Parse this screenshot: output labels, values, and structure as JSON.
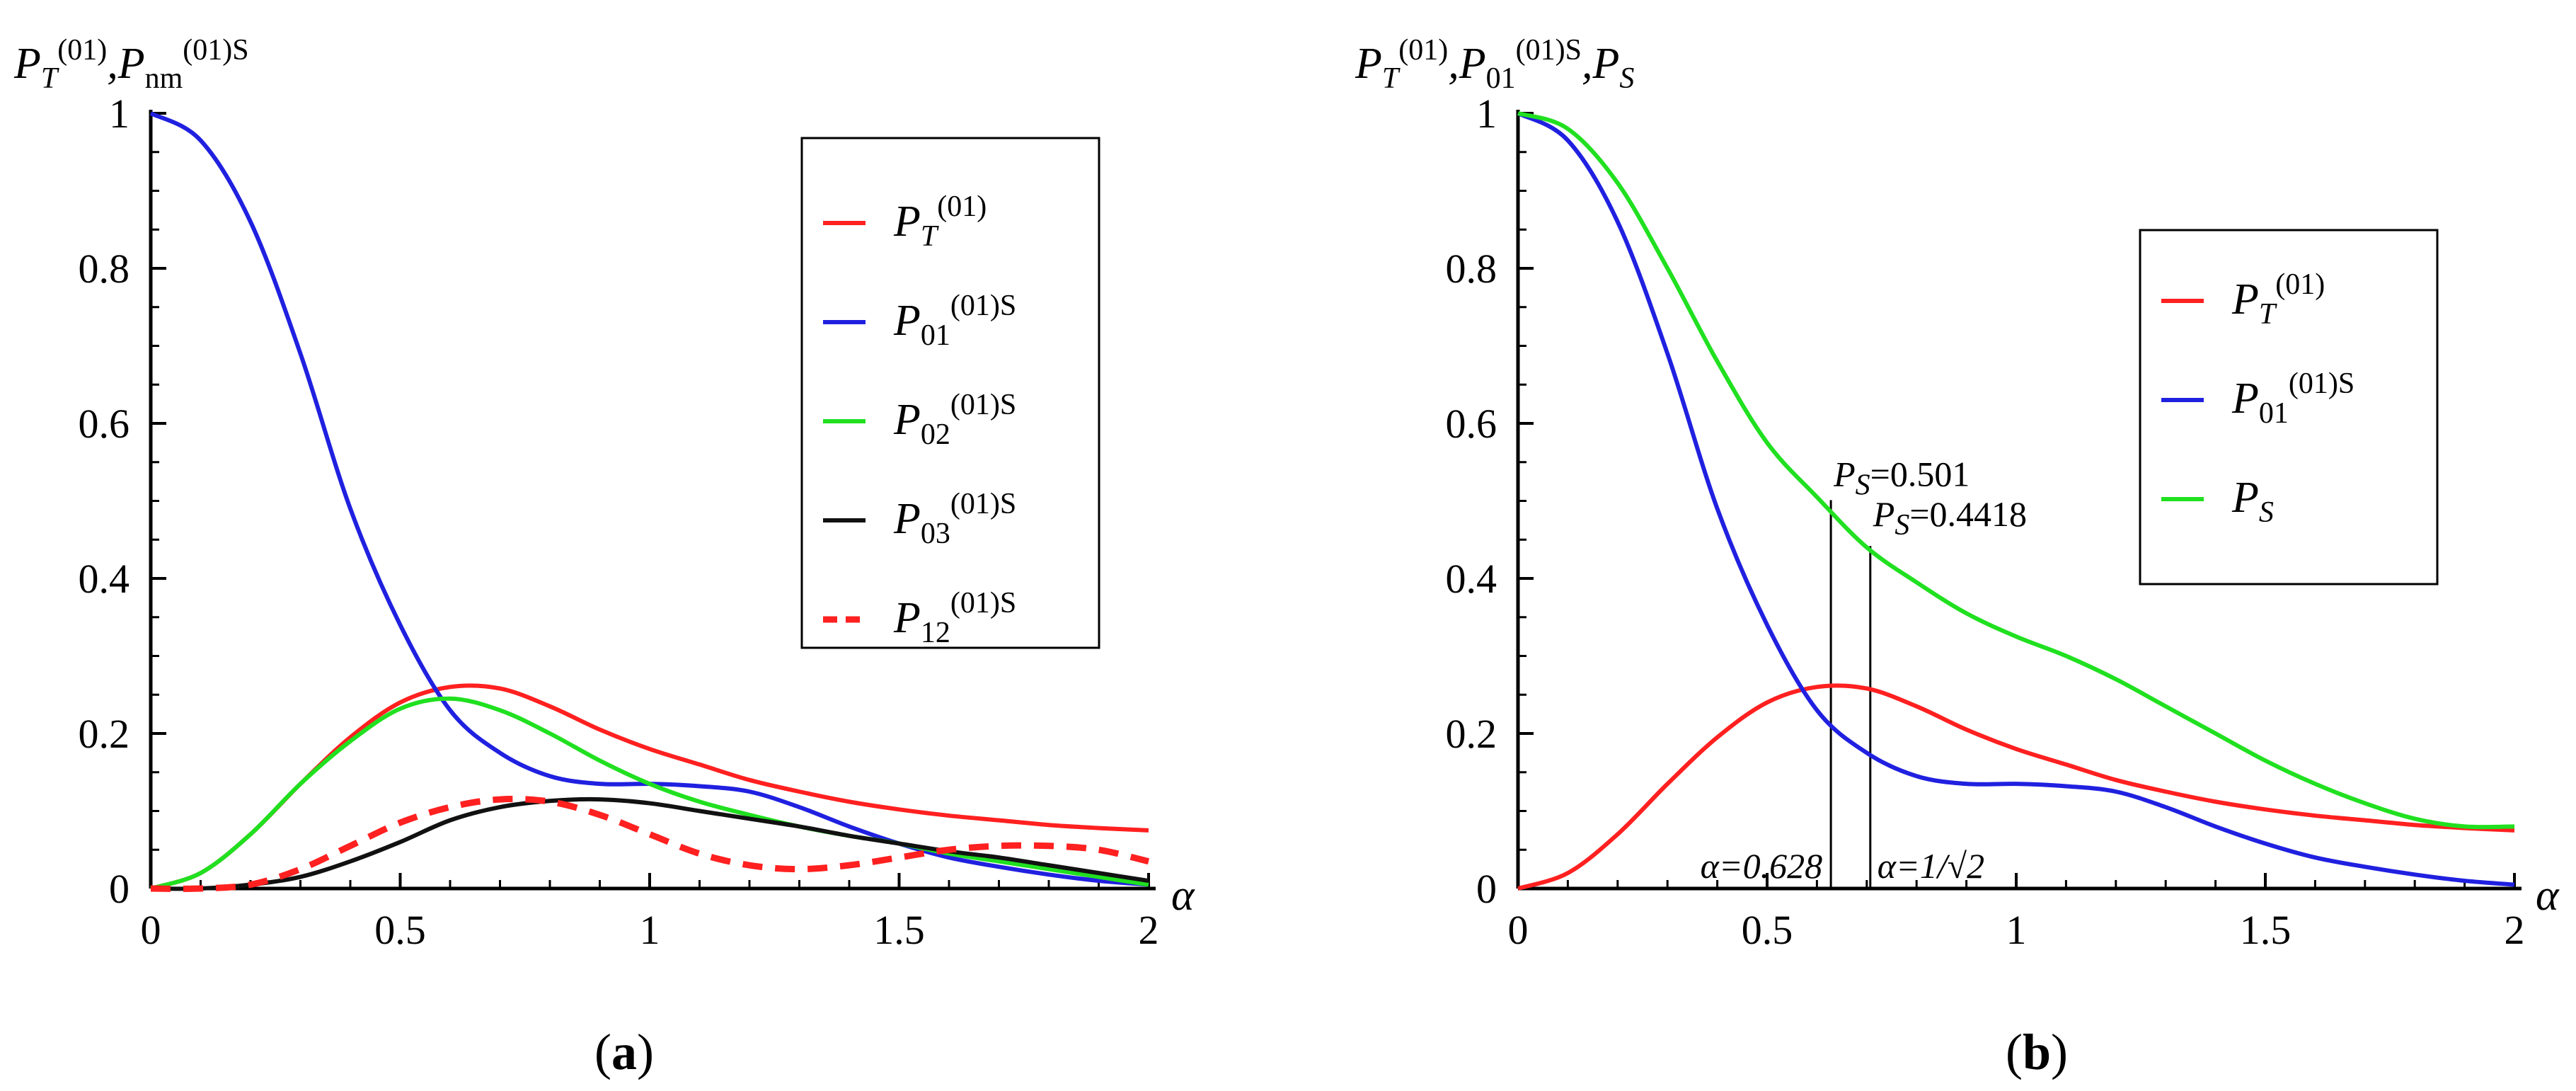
{
  "chart_data": [
    {
      "panel": "a",
      "type": "line",
      "caption": "(a)",
      "ylabel": {
        "p1": "P",
        "s1": "T",
        "u1": "(01)",
        "sep": ",",
        "p2": "P",
        "s2": "nm",
        "u2": "(01)S"
      },
      "xlabel": "α",
      "xlim": [
        0,
        2
      ],
      "ylim": [
        0,
        1
      ],
      "xticks": [
        "0",
        "0.5",
        "1",
        "1.5",
        "2"
      ],
      "yticks": [
        "0",
        "0.2",
        "0.4",
        "0.6",
        "0.8",
        "1"
      ],
      "x": [
        0,
        0.1,
        0.2,
        0.3,
        0.4,
        0.5,
        0.6,
        0.7,
        0.8,
        0.9,
        1.0,
        1.1,
        1.2,
        1.3,
        1.4,
        1.5,
        1.6,
        1.7,
        1.8,
        1.9,
        2.0
      ],
      "series": [
        {
          "key": "PT",
          "name": "P_T^(01)",
          "p": "P",
          "sub": "T",
          "sup": "(01)",
          "color": "#ff2020",
          "dash": false,
          "values": [
            0,
            0.02,
            0.07,
            0.135,
            0.195,
            0.24,
            0.26,
            0.258,
            0.235,
            0.205,
            0.18,
            0.16,
            0.14,
            0.125,
            0.112,
            0.102,
            0.094,
            0.088,
            0.082,
            0.078,
            0.075
          ]
        },
        {
          "key": "P01",
          "name": "P_01^(01)S",
          "p": "P",
          "sub": "01",
          "sup": "(01)S",
          "color": "#2020e0",
          "dash": false,
          "values": [
            1,
            0.965,
            0.86,
            0.69,
            0.49,
            0.34,
            0.23,
            0.175,
            0.145,
            0.135,
            0.135,
            0.132,
            0.125,
            0.105,
            0.08,
            0.058,
            0.04,
            0.028,
            0.018,
            0.01,
            0.005
          ]
        },
        {
          "key": "P02",
          "name": "P_02^(01)S",
          "p": "P",
          "sub": "02",
          "sup": "(01)S",
          "color": "#20e020",
          "dash": false,
          "values": [
            0,
            0.02,
            0.07,
            0.135,
            0.19,
            0.232,
            0.245,
            0.23,
            0.2,
            0.165,
            0.135,
            0.112,
            0.095,
            0.08,
            0.068,
            0.058,
            0.045,
            0.035,
            0.025,
            0.015,
            0.005
          ]
        },
        {
          "key": "P03",
          "name": "P_03^(01)S",
          "p": "P",
          "sub": "03",
          "sup": "(01)S",
          "color": "#111111",
          "dash": false,
          "values": [
            0,
            0.0,
            0.005,
            0.015,
            0.035,
            0.06,
            0.088,
            0.105,
            0.113,
            0.115,
            0.11,
            0.1,
            0.09,
            0.08,
            0.068,
            0.058,
            0.048,
            0.04,
            0.03,
            0.02,
            0.01
          ]
        },
        {
          "key": "P12",
          "name": "P_12^(01)S",
          "p": "P",
          "sub": "12",
          "sup": "(01)S",
          "color": "#ff2020",
          "dash": true,
          "values": [
            0,
            0.0,
            0.005,
            0.025,
            0.055,
            0.085,
            0.105,
            0.115,
            0.112,
            0.095,
            0.07,
            0.045,
            0.03,
            0.025,
            0.03,
            0.04,
            0.05,
            0.055,
            0.055,
            0.05,
            0.035
          ]
        }
      ]
    },
    {
      "panel": "b",
      "type": "line",
      "caption": "(b)",
      "ylabel": {
        "p1": "P",
        "s1": "T",
        "u1": "(01)",
        "sep": ",",
        "p2": "P",
        "s2": "01",
        "u2": "(01)S",
        "sep2": ",",
        "p3": "P",
        "s3": "S"
      },
      "xlabel": "α",
      "xlim": [
        0,
        2
      ],
      "ylim": [
        0,
        1
      ],
      "xticks": [
        "0",
        "0.5",
        "1",
        "1.5",
        "2"
      ],
      "yticks": [
        "0",
        "0.2",
        "0.4",
        "0.6",
        "0.8",
        "1"
      ],
      "x": [
        0,
        0.1,
        0.2,
        0.3,
        0.4,
        0.5,
        0.6,
        0.7,
        0.8,
        0.9,
        1.0,
        1.1,
        1.2,
        1.3,
        1.4,
        1.5,
        1.6,
        1.7,
        1.8,
        1.9,
        2.0
      ],
      "series": [
        {
          "key": "PT",
          "name": "P_T^(01)",
          "p": "P",
          "sub": "T",
          "sup": "(01)",
          "color": "#ff2020",
          "dash": false,
          "values": [
            0,
            0.02,
            0.07,
            0.135,
            0.195,
            0.24,
            0.26,
            0.258,
            0.235,
            0.205,
            0.18,
            0.16,
            0.14,
            0.125,
            0.112,
            0.102,
            0.094,
            0.088,
            0.082,
            0.078,
            0.075
          ]
        },
        {
          "key": "P01",
          "name": "P_01^(01)S",
          "p": "P",
          "sub": "01",
          "sup": "(01)S",
          "color": "#2020e0",
          "dash": false,
          "values": [
            1,
            0.965,
            0.86,
            0.69,
            0.49,
            0.34,
            0.23,
            0.175,
            0.145,
            0.135,
            0.135,
            0.132,
            0.125,
            0.105,
            0.08,
            0.058,
            0.04,
            0.028,
            0.018,
            0.01,
            0.005
          ]
        },
        {
          "key": "PS",
          "name": "P_S",
          "p": "P",
          "sub": "S",
          "sup": "",
          "color": "#20e020",
          "dash": false,
          "values": [
            1,
            0.98,
            0.91,
            0.8,
            0.68,
            0.575,
            0.505,
            0.44,
            0.395,
            0.355,
            0.325,
            0.3,
            0.27,
            0.235,
            0.2,
            0.165,
            0.135,
            0.11,
            0.09,
            0.08,
            0.08
          ]
        }
      ],
      "annotations": [
        {
          "x": 0.628,
          "y": 0.501,
          "label_p": "P",
          "label_s": "S",
          "label_v": "=0.501",
          "xlabel_text": "α=0.628"
        },
        {
          "x": 0.7071,
          "y": 0.4418,
          "label_p": "P",
          "label_s": "S",
          "label_v": "=0.4418",
          "xlabel_text": "α=1/√2"
        }
      ]
    }
  ]
}
